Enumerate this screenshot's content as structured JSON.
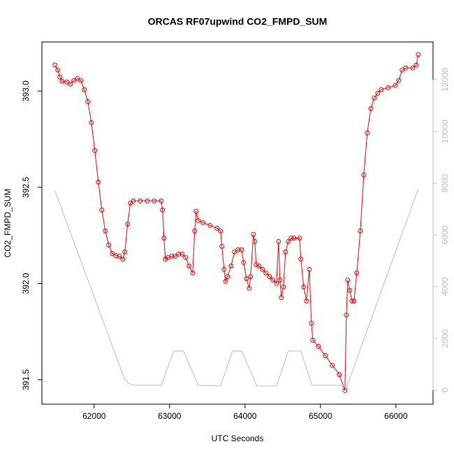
{
  "chart_data": {
    "type": "line",
    "title": "ORCAS RF07upwind CO2_FMPD_SUM",
    "x_label": "UTC Seconds",
    "y_label": "CO2_FMPD_SUM",
    "xlim": [
      61308,
      66492
    ],
    "xticks": [
      62000,
      63000,
      64000,
      65000,
      66000
    ],
    "ylim": [
      391.373,
      393.255
    ],
    "yticks": [
      {
        "value": 391.5,
        "label": "391.5"
      },
      {
        "value": 392,
        "label": "392.0"
      },
      {
        "value": 392.5,
        "label": "392.5"
      },
      {
        "value": 393,
        "label": "393.0"
      }
    ],
    "y2lim": [
      -540,
      13460
    ],
    "y2ticks": [
      0,
      2000,
      4000,
      6000,
      8000,
      10000,
      12000
    ],
    "series": [
      {
        "color": "#ff0000",
        "markers": true,
        "x": [
          61481,
          61519,
          61546,
          61574,
          61639,
          61685,
          61731,
          61778,
          61824,
          61870,
          61917,
          61963,
          62009,
          62056,
          62102,
          62148,
          62194,
          62241,
          62287,
          62333,
          62380,
          62407,
          62444,
          62481,
          62519,
          62611,
          62704,
          62796,
          62889,
          62907,
          62926,
          62944,
          62981,
          63028,
          63074,
          63120,
          63167,
          63213,
          63259,
          63306,
          63333,
          63352,
          63380,
          63444,
          63537,
          63630,
          63676,
          63694,
          63722,
          63741,
          63769,
          63815,
          63861,
          63907,
          63954,
          63981,
          64019,
          64056,
          64074,
          64111,
          64130,
          64148,
          64185,
          64231,
          64278,
          64324,
          64370,
          64417,
          64444,
          64463,
          64481,
          64509,
          64537,
          64574,
          64611,
          64648,
          64722,
          64741,
          64778,
          64815,
          64852,
          64880,
          64898,
          64972,
          65065,
          65157,
          65250,
          65324,
          65343,
          65361,
          65389,
          65417,
          65444,
          65481,
          65528,
          65574,
          65620,
          65667,
          65713,
          65759,
          65806,
          65898,
          65991,
          66037,
          66083,
          66130,
          66222,
          66269,
          66296
        ],
        "values": [
          393.135,
          393.109,
          393.073,
          393.051,
          393.047,
          393.036,
          393.055,
          393.065,
          393.055,
          393.007,
          392.945,
          392.836,
          392.691,
          392.527,
          392.382,
          392.273,
          392.2,
          392.156,
          392.145,
          392.142,
          392.127,
          392.164,
          392.309,
          392.418,
          392.429,
          392.429,
          392.429,
          392.429,
          392.429,
          392.382,
          392.236,
          392.127,
          392.135,
          392.142,
          392.142,
          392.153,
          392.153,
          392.135,
          392.091,
          392.055,
          392.273,
          392.375,
          392.327,
          392.316,
          392.302,
          392.287,
          392.273,
          392.193,
          392.073,
          392.011,
          392.036,
          392.091,
          392.164,
          392.175,
          392.175,
          392.109,
          392.025,
          391.975,
          392.036,
          392.255,
          392.218,
          392.098,
          392.091,
          392.073,
          392.055,
          392.036,
          392.018,
          392.0,
          392.218,
          392.018,
          391.927,
          391.982,
          392.164,
          392.218,
          392.236,
          392.236,
          392.236,
          392.127,
          391.982,
          391.909,
          392.073,
          391.793,
          391.705,
          391.673,
          391.625,
          391.575,
          391.527,
          391.444,
          391.836,
          392.018,
          391.964,
          391.909,
          391.909,
          392.055,
          392.273,
          392.564,
          392.782,
          392.909,
          392.964,
          392.989,
          393.007,
          393.018,
          393.029,
          393.055,
          393.109,
          393.12,
          393.12,
          393.135,
          393.189
        ]
      },
      {
        "color": "#bebebe",
        "markers": false,
        "axis": "y2",
        "x": [
          61481,
          62407,
          62454,
          62519,
          62889,
          63056,
          63185,
          63380,
          63676,
          63833,
          63954,
          64157,
          64417,
          64574,
          64741,
          64889,
          65269,
          65333,
          66296
        ],
        "values": [
          7703,
          405,
          270,
          189,
          189,
          1514,
          1514,
          189,
          162,
          1514,
          1514,
          162,
          162,
          1514,
          1514,
          189,
          189,
          0,
          7784
        ]
      }
    ]
  }
}
